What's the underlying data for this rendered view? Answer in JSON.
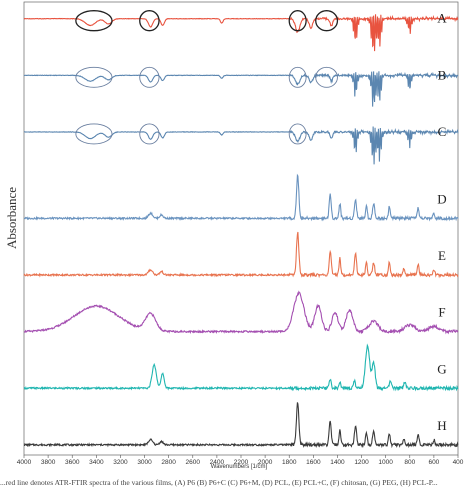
{
  "chart_data": {
    "type": "line",
    "xlabel": "Wavenumbers [1/cm]",
    "ylabel": "Absorbance",
    "xlim": [
      4000,
      400
    ],
    "x_ticks": [
      4000,
      3800,
      3600,
      3400,
      3200,
      3000,
      2800,
      2600,
      2400,
      2200,
      2000,
      1800,
      1600,
      1400,
      1200,
      1000,
      800,
      600,
      400
    ],
    "grid": false,
    "series": [
      {
        "name": "A",
        "color": "#e8533f",
        "baseline": 0.45,
        "amp": 0.9,
        "kind": "transmittance",
        "features": [
          [
            3450,
            0.9,
            60
          ],
          [
            3300,
            0.7,
            40
          ],
          [
            2950,
            1.1,
            25
          ],
          [
            2850,
            0.9,
            20
          ],
          [
            2360,
            0.6,
            15
          ],
          [
            1730,
            1.8,
            25
          ],
          [
            1620,
            1.2,
            20
          ],
          [
            1450,
            1.0,
            15
          ],
          [
            1250,
            1.4,
            20
          ],
          [
            1100,
            2.0,
            25
          ],
          [
            1050,
            1.6,
            20
          ],
          [
            800,
            0.9,
            20
          ]
        ]
      },
      {
        "name": "B",
        "color": "#5b86b0",
        "baseline": 0.4,
        "amp": 0.8,
        "kind": "transmittance",
        "features": [
          [
            3450,
            0.8,
            60
          ],
          [
            3300,
            0.6,
            40
          ],
          [
            2950,
            0.9,
            25
          ],
          [
            2850,
            0.7,
            20
          ],
          [
            2360,
            0.4,
            15
          ],
          [
            1730,
            1.2,
            25
          ],
          [
            1620,
            1.0,
            20
          ],
          [
            1450,
            0.8,
            15
          ],
          [
            1250,
            1.2,
            20
          ],
          [
            1100,
            1.8,
            25
          ],
          [
            1050,
            1.4,
            20
          ],
          [
            800,
            0.8,
            20
          ]
        ]
      },
      {
        "name": "C",
        "color": "#5b86b0",
        "baseline": 0.4,
        "amp": 0.8,
        "kind": "transmittance",
        "features": [
          [
            3450,
            0.9,
            60
          ],
          [
            3300,
            0.7,
            40
          ],
          [
            2950,
            1.0,
            25
          ],
          [
            2850,
            0.8,
            20
          ],
          [
            2360,
            0.4,
            15
          ],
          [
            1730,
            1.3,
            25
          ],
          [
            1620,
            1.1,
            20
          ],
          [
            1450,
            0.8,
            15
          ],
          [
            1250,
            1.3,
            20
          ],
          [
            1100,
            1.9,
            25
          ],
          [
            1050,
            1.5,
            20
          ],
          [
            800,
            0.8,
            20
          ]
        ]
      },
      {
        "name": "D",
        "color": "#6a93bf",
        "baseline": 0.0,
        "amp": 1.0,
        "kind": "absorbance",
        "features": [
          [
            2950,
            0.12,
            25
          ],
          [
            2860,
            0.08,
            20
          ],
          [
            1730,
            1.0,
            14
          ],
          [
            1460,
            0.55,
            12
          ],
          [
            1380,
            0.35,
            10
          ],
          [
            1250,
            0.45,
            12
          ],
          [
            1160,
            0.3,
            10
          ],
          [
            1100,
            0.35,
            12
          ],
          [
            970,
            0.28,
            10
          ],
          [
            730,
            0.25,
            10
          ],
          [
            600,
            0.12,
            10
          ]
        ]
      },
      {
        "name": "E",
        "color": "#e8734f",
        "baseline": 0.0,
        "amp": 1.0,
        "kind": "absorbance",
        "features": [
          [
            2950,
            0.12,
            25
          ],
          [
            2860,
            0.08,
            20
          ],
          [
            1730,
            1.0,
            14
          ],
          [
            1460,
            0.55,
            12
          ],
          [
            1380,
            0.4,
            10
          ],
          [
            1250,
            0.5,
            12
          ],
          [
            1160,
            0.3,
            10
          ],
          [
            1100,
            0.3,
            12
          ],
          [
            970,
            0.28,
            10
          ],
          [
            850,
            0.15,
            10
          ],
          [
            730,
            0.25,
            10
          ],
          [
            600,
            0.12,
            10
          ]
        ]
      },
      {
        "name": "F",
        "color": "#a44fb1",
        "baseline": 0.0,
        "amp": 1.0,
        "kind": "absorbance",
        "features": [
          [
            3400,
            0.6,
            260
          ],
          [
            2950,
            0.4,
            60
          ],
          [
            1720,
            0.9,
            60
          ],
          [
            1560,
            0.6,
            40
          ],
          [
            1420,
            0.45,
            35
          ],
          [
            1300,
            0.5,
            40
          ],
          [
            1100,
            0.25,
            50
          ],
          [
            800,
            0.15,
            60
          ],
          [
            600,
            0.12,
            60
          ]
        ]
      },
      {
        "name": "G",
        "color": "#1fb5b0",
        "baseline": 0.0,
        "amp": 1.0,
        "kind": "absorbance",
        "features": [
          [
            2920,
            0.55,
            25
          ],
          [
            2850,
            0.35,
            18
          ],
          [
            1460,
            0.2,
            12
          ],
          [
            1380,
            0.15,
            10
          ],
          [
            1260,
            0.18,
            12
          ],
          [
            1150,
            1.0,
            25
          ],
          [
            1100,
            0.6,
            18
          ],
          [
            960,
            0.18,
            12
          ],
          [
            840,
            0.15,
            12
          ]
        ]
      },
      {
        "name": "H",
        "color": "#3a3a3a",
        "baseline": 0.0,
        "amp": 1.0,
        "kind": "absorbance",
        "features": [
          [
            2950,
            0.12,
            25
          ],
          [
            2860,
            0.08,
            20
          ],
          [
            1730,
            1.0,
            14
          ],
          [
            1460,
            0.55,
            12
          ],
          [
            1380,
            0.35,
            10
          ],
          [
            1250,
            0.45,
            12
          ],
          [
            1160,
            0.3,
            10
          ],
          [
            1100,
            0.35,
            12
          ],
          [
            970,
            0.28,
            10
          ],
          [
            850,
            0.15,
            10
          ],
          [
            730,
            0.25,
            10
          ],
          [
            600,
            0.12,
            10
          ]
        ]
      }
    ],
    "annotations": [
      {
        "series": "A",
        "shape": "ellipse",
        "center_cm": 3420,
        "span_cm": 300
      },
      {
        "series": "A",
        "shape": "ellipse",
        "center_cm": 2960,
        "span_cm": 160
      },
      {
        "series": "A",
        "shape": "ellipse",
        "center_cm": 1730,
        "span_cm": 140
      },
      {
        "series": "A",
        "shape": "ellipse",
        "center_cm": 1490,
        "span_cm": 180
      },
      {
        "series": "B",
        "shape": "ellipse",
        "center_cm": 3420,
        "span_cm": 300
      },
      {
        "series": "B",
        "shape": "ellipse",
        "center_cm": 2960,
        "span_cm": 160
      },
      {
        "series": "B",
        "shape": "ellipse",
        "center_cm": 1730,
        "span_cm": 140
      },
      {
        "series": "B",
        "shape": "ellipse",
        "center_cm": 1490,
        "span_cm": 180
      },
      {
        "series": "C",
        "shape": "ellipse",
        "center_cm": 3420,
        "span_cm": 300
      },
      {
        "series": "C",
        "shape": "ellipse",
        "center_cm": 2960,
        "span_cm": 160
      },
      {
        "series": "C",
        "shape": "ellipse",
        "center_cm": 1730,
        "span_cm": 140
      }
    ]
  },
  "caption": "...red line denotes ATR-FTIR spectra of the various films, (A) P6 (B) P6+C (C) P6+M, (D) PCL, (E) PCL+C, (F) chitosan, (G) PEG, (H) PCL-P..."
}
